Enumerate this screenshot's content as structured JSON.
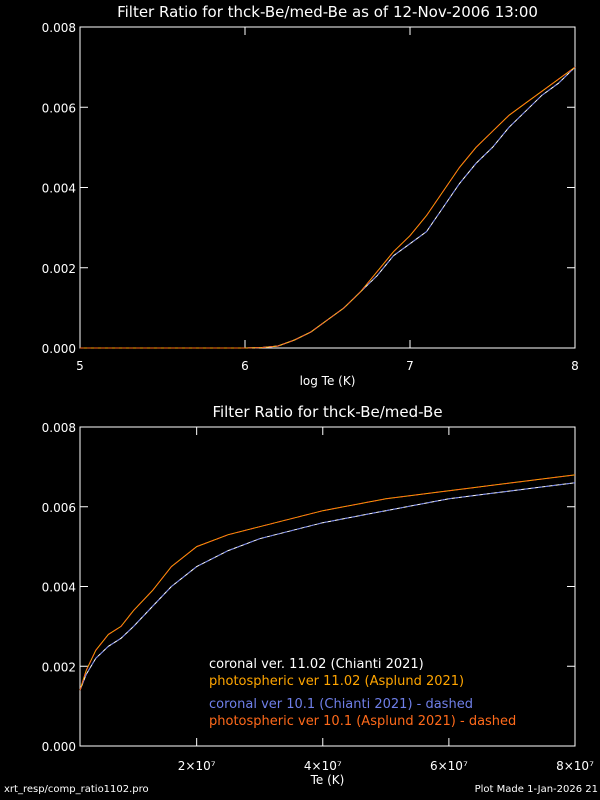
{
  "footer": {
    "left": "xrt_resp/comp_ratio1102.pro",
    "right": "Plot Made  1-Jan-2026 21"
  },
  "series_styles": [
    {
      "color": "#ffffff",
      "dashed": false
    },
    {
      "color": "#ffa500",
      "dashed": false
    },
    {
      "color": "#6f7fe8",
      "dashed": true
    },
    {
      "color": "#ff6a1a",
      "dashed": true
    }
  ],
  "chart_data": [
    {
      "type": "line",
      "title": "Filter Ratio for thck-Be/med-Be as of 12-Nov-2006 13:00",
      "xlabel": "log Te (K)",
      "ylabel": "",
      "xlim": [
        5,
        8
      ],
      "ylim": [
        0,
        0.008
      ],
      "xticks": [
        5,
        6,
        7,
        8
      ],
      "xtick_labels": [
        "5",
        "6",
        "7",
        "8"
      ],
      "yticks": [
        0,
        0.002,
        0.004,
        0.006,
        0.008
      ],
      "ytick_labels": [
        "0.000",
        "0.002",
        "0.004",
        "0.006",
        "0.008"
      ],
      "x": [
        5.0,
        6.0,
        6.1,
        6.2,
        6.3,
        6.4,
        6.5,
        6.6,
        6.7,
        6.8,
        6.9,
        7.0,
        7.1,
        7.2,
        7.3,
        7.4,
        7.5,
        7.6,
        7.7,
        7.8,
        7.9,
        8.0
      ],
      "series": [
        {
          "values": [
            0,
            0,
            1e-05,
            5e-05,
            0.0002,
            0.0004,
            0.0007,
            0.001,
            0.0014,
            0.0018,
            0.0023,
            0.0026,
            0.0029,
            0.0035,
            0.0041,
            0.0046,
            0.005,
            0.0055,
            0.0059,
            0.0063,
            0.0066,
            0.007
          ]
        },
        {
          "values": [
            0,
            0,
            1e-05,
            5e-05,
            0.0002,
            0.0004,
            0.0007,
            0.001,
            0.0014,
            0.0019,
            0.0024,
            0.0028,
            0.0033,
            0.0039,
            0.0045,
            0.005,
            0.0054,
            0.0058,
            0.0061,
            0.0064,
            0.0067,
            0.007
          ]
        },
        {
          "values": [
            0,
            0,
            1e-05,
            5e-05,
            0.0002,
            0.0004,
            0.0007,
            0.001,
            0.0014,
            0.0018,
            0.0023,
            0.0026,
            0.0029,
            0.0035,
            0.0041,
            0.0046,
            0.005,
            0.0055,
            0.0059,
            0.0063,
            0.0066,
            0.007
          ]
        },
        {
          "values": [
            0,
            0,
            1e-05,
            5e-05,
            0.0002,
            0.0004,
            0.0007,
            0.001,
            0.0014,
            0.0019,
            0.0024,
            0.0028,
            0.0033,
            0.0039,
            0.0045,
            0.005,
            0.0054,
            0.0058,
            0.0061,
            0.0064,
            0.0067,
            0.007
          ]
        }
      ]
    },
    {
      "type": "line",
      "title": "Filter Ratio for thck-Be/med-Be",
      "xlabel": "Te (K)",
      "ylabel": "",
      "xlim": [
        1500000,
        80000000
      ],
      "ylim": [
        0,
        0.008
      ],
      "xticks": [
        20000000,
        40000000,
        60000000,
        80000000
      ],
      "xtick_labels": [
        "2×10⁷",
        "4×10⁷",
        "6×10⁷",
        "8×10⁷"
      ],
      "yticks": [
        0,
        0.002,
        0.004,
        0.006,
        0.008
      ],
      "ytick_labels": [
        "0.000",
        "0.002",
        "0.004",
        "0.006",
        "0.008"
      ],
      "x": [
        1500000,
        2500000,
        4000000,
        6000000,
        8000000,
        10000000,
        13000000,
        16000000,
        20000000,
        25000000,
        30000000,
        40000000,
        50000000,
        60000000,
        70000000,
        80000000
      ],
      "series": [
        {
          "name": "coronal ver. 11.02 (Chianti 2021)",
          "values": [
            0.0014,
            0.0018,
            0.0022,
            0.0025,
            0.0027,
            0.003,
            0.0035,
            0.004,
            0.0045,
            0.0049,
            0.0052,
            0.0056,
            0.0059,
            0.0062,
            0.0064,
            0.0066
          ]
        },
        {
          "name": "photospheric ver 11.02 (Asplund 2021)",
          "values": [
            0.0014,
            0.0019,
            0.0024,
            0.0028,
            0.003,
            0.0034,
            0.0039,
            0.0045,
            0.005,
            0.0053,
            0.0055,
            0.0059,
            0.0062,
            0.0064,
            0.0066,
            0.0068
          ]
        },
        {
          "name": "coronal ver 10.1 (Chianti 2021) - dashed",
          "values": [
            0.0014,
            0.0018,
            0.0022,
            0.0025,
            0.0027,
            0.003,
            0.0035,
            0.004,
            0.0045,
            0.0049,
            0.0052,
            0.0056,
            0.0059,
            0.0062,
            0.0064,
            0.0066
          ]
        },
        {
          "name": "photospheric ver 10.1 (Asplund 2021) - dashed",
          "values": [
            0.0014,
            0.0019,
            0.0024,
            0.0028,
            0.003,
            0.0034,
            0.0039,
            0.0045,
            0.005,
            0.0053,
            0.0055,
            0.0059,
            0.0062,
            0.0064,
            0.0066,
            0.0068
          ]
        }
      ]
    }
  ]
}
